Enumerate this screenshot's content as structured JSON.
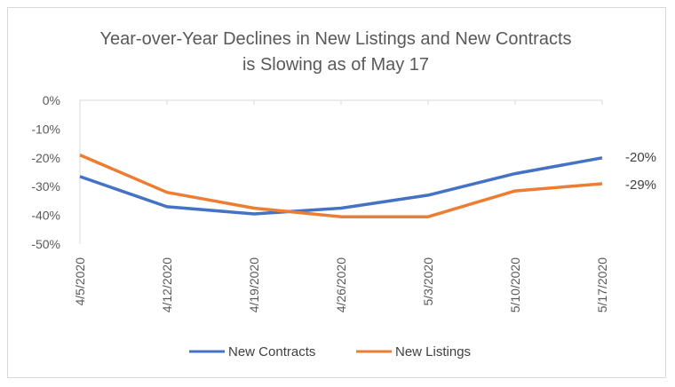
{
  "chart_data": {
    "type": "line",
    "title_line1": "Year-over-Year Declines in New Listings and New Contracts",
    "title_line2": "is Slowing as of May 17",
    "categories": [
      "4/5/2020",
      "4/12/2020",
      "4/19/2020",
      "4/26/2020",
      "5/3/2020",
      "5/10/2020",
      "5/17/2020"
    ],
    "y_ticks": [
      "0%",
      "-10%",
      "-20%",
      "-30%",
      "-40%",
      "-50%"
    ],
    "ylim": [
      -50,
      0
    ],
    "grid": false,
    "series": [
      {
        "name": "New Contracts",
        "color": "#4472c4",
        "values": [
          -26.5,
          -37,
          -39.5,
          -37.5,
          -33,
          -25.5,
          -20
        ]
      },
      {
        "name": "New Listings",
        "color": "#ed7d31",
        "values": [
          -19,
          -32,
          -37.5,
          -40.5,
          -40.5,
          -31.5,
          -29
        ]
      }
    ],
    "end_labels": [
      "-20%",
      "-29%"
    ],
    "legend_position": "bottom"
  }
}
